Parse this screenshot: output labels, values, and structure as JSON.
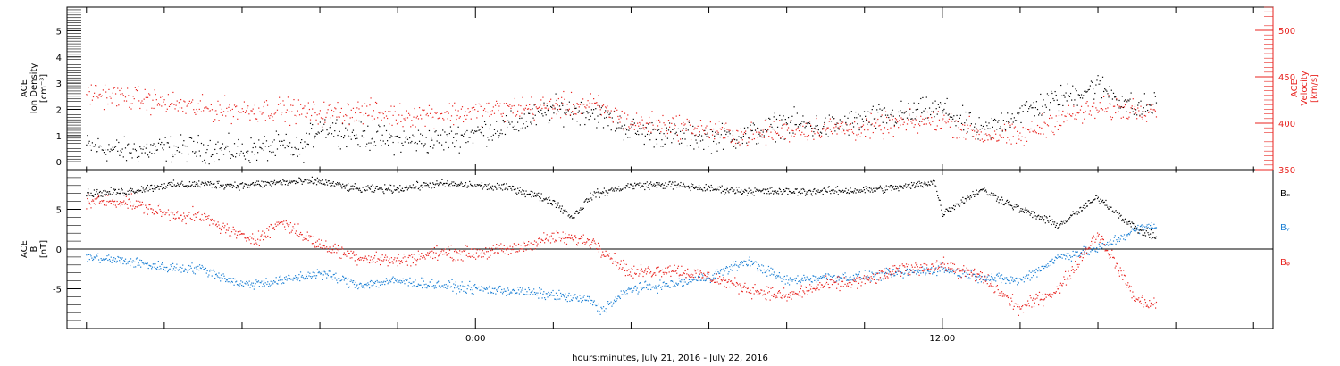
{
  "chart_data": [
    {
      "type": "scatter",
      "panel": "top",
      "left_axis": {
        "title_lines": [
          "ACE",
          "Ion Density",
          "[cm⁻³]"
        ],
        "ylim": [
          -0.3,
          5.9
        ],
        "ticks": [
          0,
          1,
          2,
          3,
          4,
          5
        ],
        "tick_labels": [
          "0",
          "1",
          "2",
          "3",
          "4",
          "5"
        ],
        "color": "#000000"
      },
      "right_axis": {
        "title_lines": [
          "ACE",
          "Velocity",
          "[km/s]"
        ],
        "ylim": [
          350,
          525
        ],
        "ticks": [
          350,
          400,
          450,
          500
        ],
        "tick_labels": [
          "350",
          "400",
          "450",
          "500"
        ],
        "color": "#e8231f"
      },
      "series": [
        {
          "axis": "left",
          "color": "#000000",
          "x": [
            -10.0,
            -9.0,
            -8.0,
            -7.0,
            -6.0,
            -5.0,
            -4.5,
            -4.0,
            -3.0,
            -2.0,
            -1.0,
            0.0,
            1.0,
            2.0,
            3.0,
            4.0,
            5.0,
            6.0,
            7.0,
            8.0,
            9.0,
            10.0,
            11.0,
            12.0,
            13.0,
            14.0,
            15.0,
            16.0,
            17.0,
            17.5
          ],
          "y": [
            0.6,
            0.4,
            0.5,
            0.5,
            0.4,
            0.6,
            0.4,
            1.4,
            1.0,
            0.8,
            0.8,
            1.1,
            1.4,
            2.0,
            1.9,
            1.2,
            1.0,
            0.9,
            1.0,
            1.5,
            1.3,
            1.6,
            1.8,
            2.0,
            1.1,
            1.9,
            2.4,
            2.9,
            2.0,
            2.2
          ]
        },
        {
          "axis": "right",
          "color": "#e8231f",
          "x": [
            -10.0,
            -9.0,
            -8.0,
            -7.0,
            -6.0,
            -5.0,
            -4.0,
            -3.0,
            -2.0,
            -1.0,
            0.0,
            1.0,
            2.0,
            3.0,
            4.0,
            5.0,
            6.0,
            7.0,
            8.0,
            9.0,
            10.0,
            11.0,
            12.0,
            13.0,
            14.0,
            15.0,
            16.0,
            17.0,
            17.5
          ],
          "y": [
            433,
            428,
            422,
            415,
            414,
            415,
            410,
            413,
            408,
            410,
            412,
            416,
            418,
            420,
            400,
            398,
            392,
            386,
            393,
            395,
            394,
            400,
            403,
            388,
            385,
            405,
            415,
            416,
            418
          ]
        }
      ]
    },
    {
      "type": "scatter",
      "panel": "bottom",
      "left_axis": {
        "title_lines": [
          "ACE",
          "B",
          "[nT]"
        ],
        "ylim": [
          -10,
          10
        ],
        "ticks": [
          -5,
          0,
          5
        ],
        "tick_labels": [
          "-5",
          "0",
          "5"
        ],
        "color": "#000000"
      },
      "zero_line": true,
      "series": [
        {
          "name": "Bₓ",
          "color": "#000000",
          "x": [
            -10.0,
            -9.0,
            -8.0,
            -7.0,
            -6.0,
            -5.0,
            -4.0,
            -3.0,
            -2.0,
            -1.0,
            0.0,
            1.0,
            2.0,
            2.5,
            3.0,
            4.0,
            5.0,
            6.0,
            7.0,
            8.0,
            9.0,
            10.0,
            11.0,
            11.8,
            12.0,
            13.0,
            14.0,
            15.0,
            16.0,
            17.0,
            17.5
          ],
          "y": [
            7.0,
            7.2,
            8.0,
            8.2,
            8.0,
            8.4,
            8.5,
            7.5,
            7.6,
            8.2,
            8.0,
            7.6,
            6.0,
            4.0,
            6.8,
            8.0,
            8.1,
            7.6,
            7.3,
            7.2,
            7.3,
            7.4,
            7.8,
            8.5,
            4.5,
            7.5,
            5.0,
            3.0,
            6.5,
            2.5,
            1.5
          ]
        },
        {
          "name": "Bᵧ",
          "color": "#1a7fd4",
          "x": [
            -10.0,
            -9.0,
            -8.0,
            -7.0,
            -6.0,
            -5.0,
            -4.0,
            -3.0,
            -2.0,
            -1.0,
            0.0,
            1.0,
            2.0,
            3.0,
            3.2,
            4.0,
            5.0,
            6.0,
            7.0,
            8.0,
            9.0,
            10.0,
            11.0,
            12.0,
            13.0,
            14.0,
            15.0,
            16.0,
            17.0,
            17.5
          ],
          "y": [
            -1.0,
            -1.5,
            -2.3,
            -2.5,
            -4.5,
            -4.0,
            -3.0,
            -4.5,
            -4.0,
            -4.5,
            -5.0,
            -5.3,
            -5.8,
            -6.5,
            -7.8,
            -5.0,
            -4.5,
            -3.5,
            -1.5,
            -4.0,
            -3.5,
            -3.5,
            -3.0,
            -2.5,
            -3.5,
            -4.0,
            -1.0,
            0.0,
            2.5,
            3.0
          ]
        },
        {
          "name": "Bᵩ",
          "color": "#e8231f",
          "x": [
            -10.0,
            -9.0,
            -8.0,
            -7.0,
            -6.0,
            -5.5,
            -5.0,
            -4.0,
            -3.0,
            -2.0,
            -1.0,
            0.0,
            1.0,
            2.0,
            3.0,
            4.0,
            5.0,
            6.0,
            7.0,
            8.0,
            9.0,
            10.0,
            11.0,
            12.0,
            13.0,
            14.0,
            15.0,
            16.0,
            17.0,
            17.5
          ],
          "y": [
            6.0,
            6.0,
            4.5,
            4.0,
            1.5,
            1.5,
            3.5,
            0.5,
            -1.0,
            -1.5,
            -0.5,
            -0.5,
            0.0,
            1.5,
            1.0,
            -3.0,
            -2.5,
            -3.5,
            -5.0,
            -6.0,
            -4.5,
            -4.0,
            -2.5,
            -2.0,
            -3.5,
            -7.5,
            -5.0,
            2.0,
            -6.5,
            -7.0
          ]
        }
      ]
    }
  ],
  "x_axis": {
    "label": "hours:minutes, July 21, 2016 - July 22, 2016",
    "xlim": [
      -10.5,
      20.5
    ],
    "major_ticks": [
      0,
      12
    ],
    "tick_labels": [
      "0:00",
      "12:00"
    ],
    "minor_step": 2
  }
}
